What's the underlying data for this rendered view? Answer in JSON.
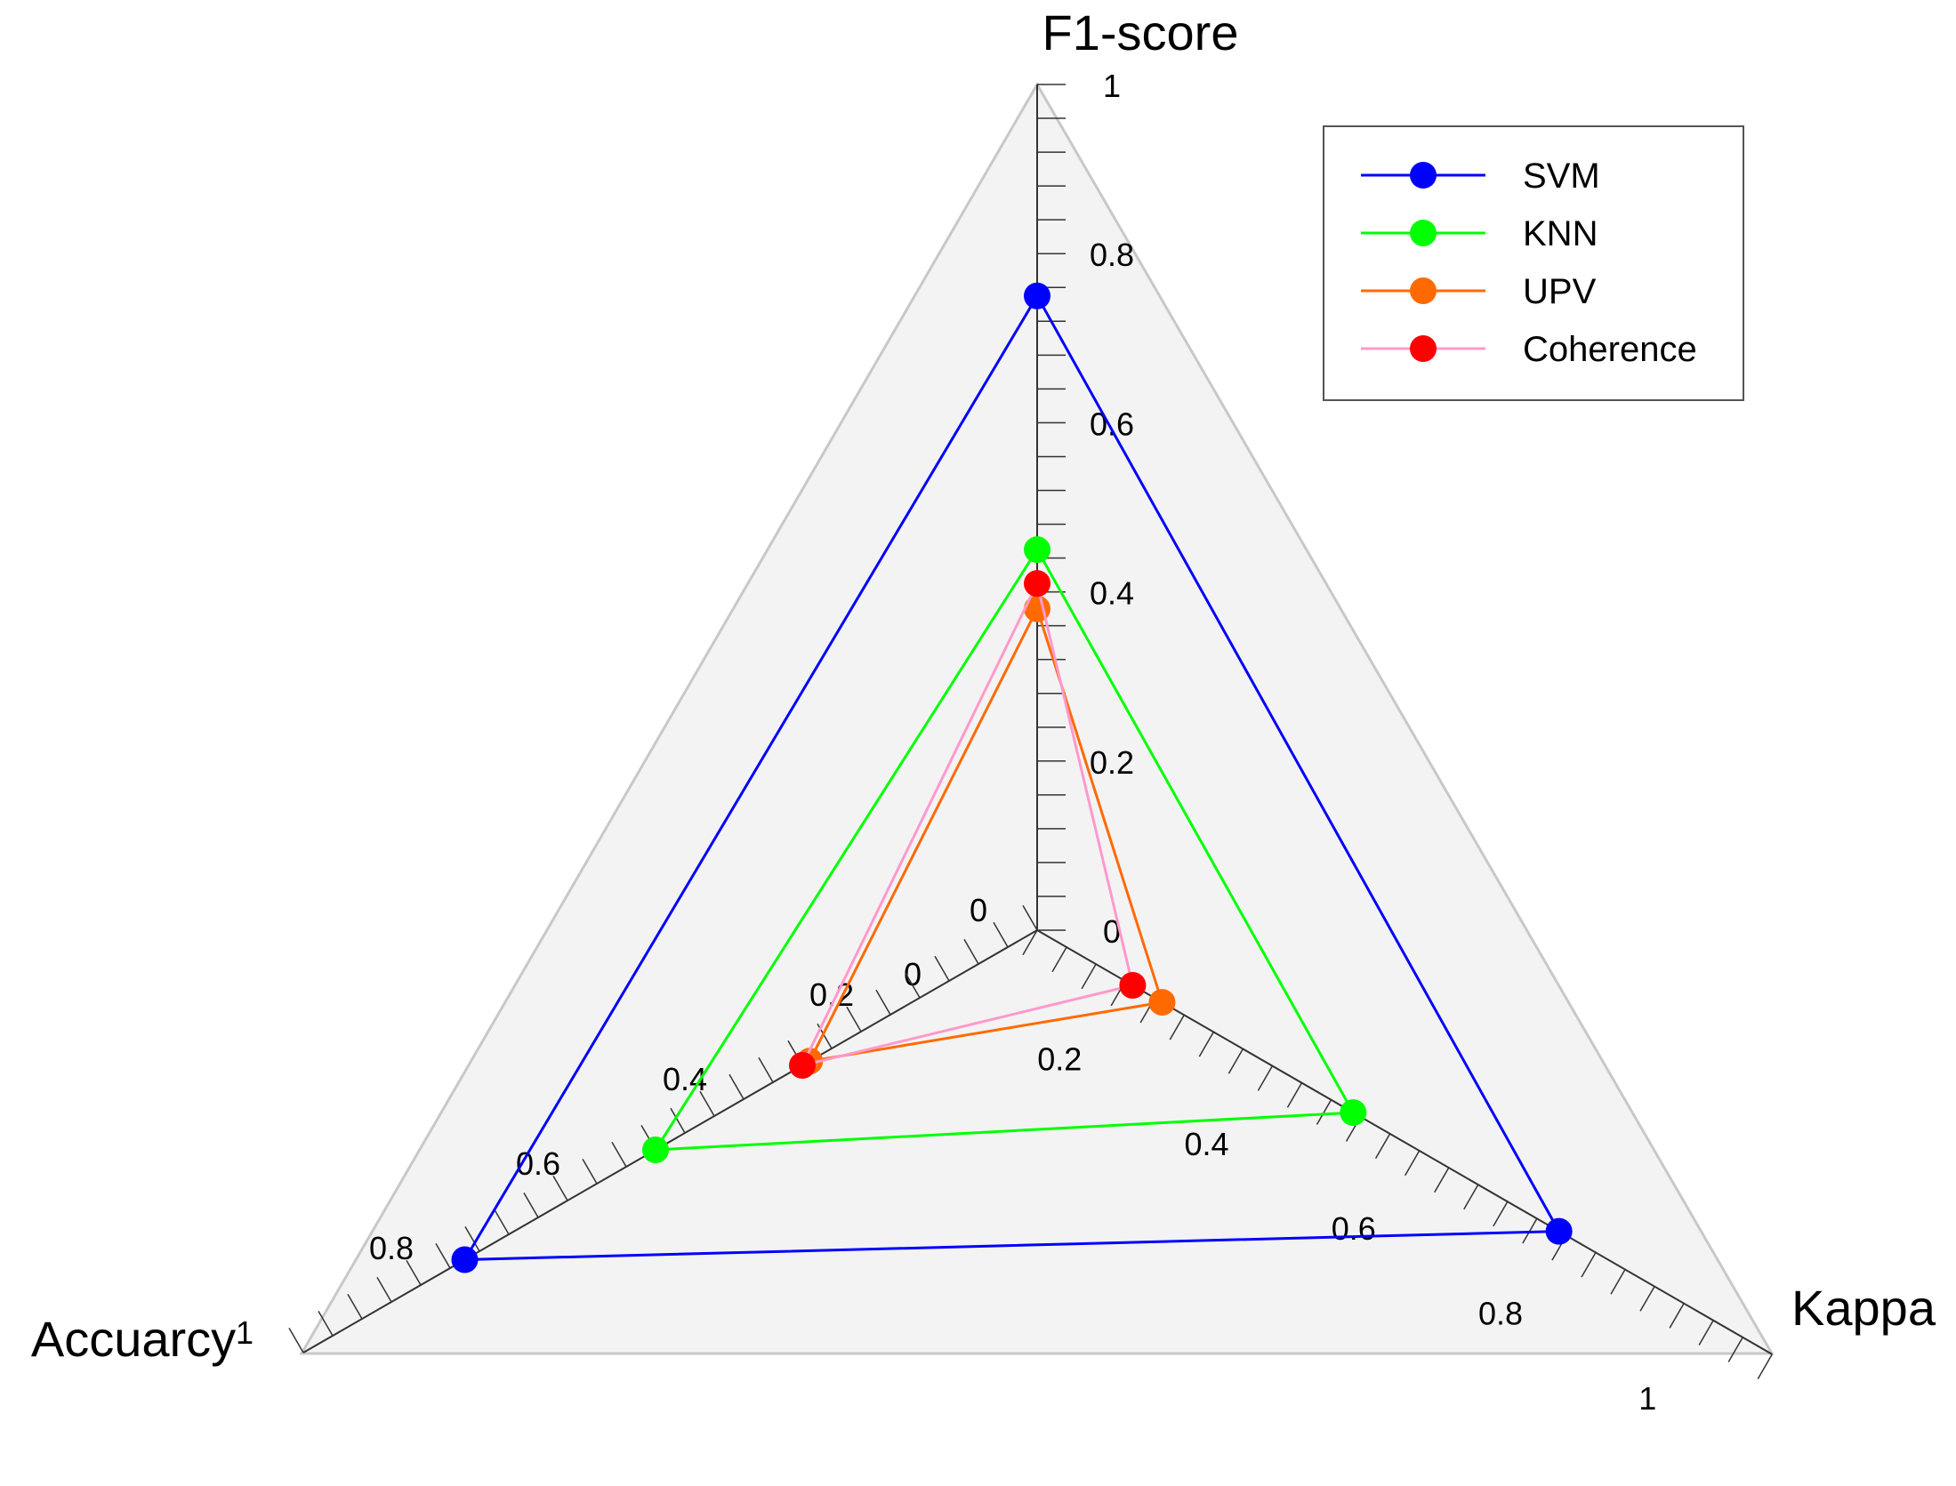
{
  "chart_data": {
    "type": "radar",
    "axes": [
      {
        "label": "F1-score",
        "max": 1,
        "tick_labels": [
          "0",
          "0.2",
          "0.4",
          "0.6",
          "0.8",
          "1"
        ]
      },
      {
        "label": "Kappa",
        "max": 1,
        "tick_labels": [
          "0",
          "0.2",
          "0.4",
          "0.6",
          "0.8",
          "1"
        ]
      },
      {
        "label": "Accuarcy",
        "max": 1,
        "tick_labels": [
          "0",
          "0.2",
          "0.4",
          "0.6",
          "0.8",
          "1"
        ]
      }
    ],
    "series": [
      {
        "name": "SVM",
        "color": "#0000ff",
        "line_color": "#0000ff",
        "values": [
          0.75,
          0.71,
          0.78
        ]
      },
      {
        "name": "KNN",
        "color": "#00ff00",
        "line_color": "#00ff00",
        "values": [
          0.45,
          0.43,
          0.52
        ]
      },
      {
        "name": "UPV",
        "color": "#ff6a00",
        "line_color": "#ff6a00",
        "values": [
          0.38,
          0.17,
          0.31
        ]
      },
      {
        "name": "Coherence",
        "color": "#ff0000",
        "line_color": "#ff99cc",
        "values": [
          0.41,
          0.13,
          0.32
        ]
      }
    ],
    "legend_position": "top-right",
    "grid": false
  }
}
